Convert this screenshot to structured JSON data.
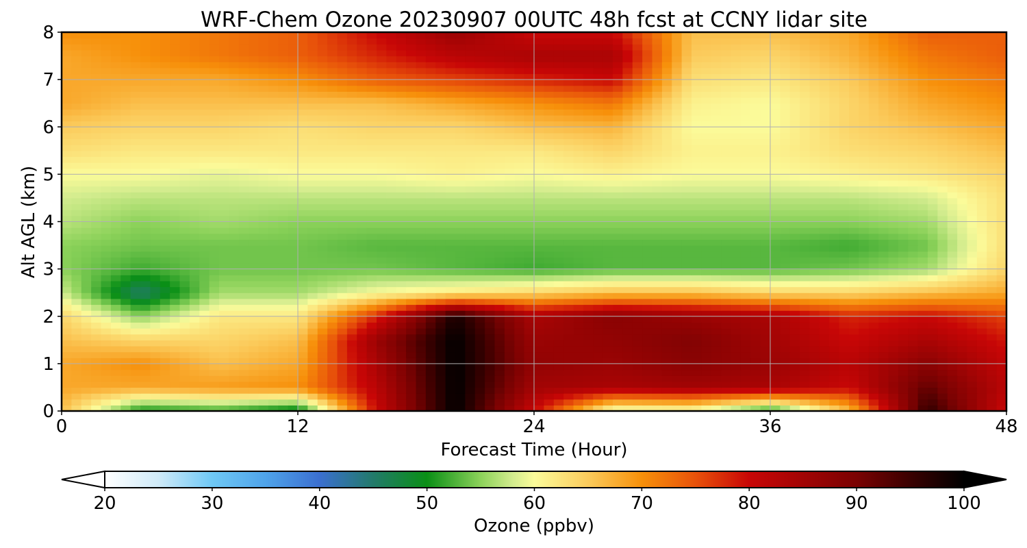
{
  "chart_data": {
    "type": "heatmap",
    "title": "WRF-Chem Ozone  20230907 00UTC 48h fcst at CCNY lidar site",
    "xlabel": "Forecast Time (Hour)",
    "ylabel": "Alt AGL (km)",
    "xlim": [
      0,
      48
    ],
    "ylim": [
      0,
      8
    ],
    "xticks": [
      0,
      12,
      24,
      36,
      48
    ],
    "yticks": [
      0,
      1,
      2,
      3,
      4,
      5,
      6,
      7,
      8
    ],
    "grid": true,
    "colorbar": {
      "label": "Ozone  (ppbv)",
      "range": [
        20,
        100
      ],
      "ticks": [
        20,
        30,
        40,
        50,
        60,
        70,
        80,
        90,
        100
      ],
      "extend": "both",
      "stops": [
        {
          "value": 20,
          "color": "#ffffff"
        },
        {
          "value": 25,
          "color": "#cfeaf8"
        },
        {
          "value": 30,
          "color": "#6fc8f5"
        },
        {
          "value": 35,
          "color": "#4fa3ea"
        },
        {
          "value": 40,
          "color": "#3b6fd0"
        },
        {
          "value": 45,
          "color": "#227a6a"
        },
        {
          "value": 50,
          "color": "#0a8f16"
        },
        {
          "value": 55,
          "color": "#8cd25a"
        },
        {
          "value": 58,
          "color": "#d3ec8e"
        },
        {
          "value": 60,
          "color": "#fbfb9a"
        },
        {
          "value": 65,
          "color": "#fbcb5c"
        },
        {
          "value": 70,
          "color": "#f7900a"
        },
        {
          "value": 75,
          "color": "#e8520a"
        },
        {
          "value": 80,
          "color": "#c80606"
        },
        {
          "value": 85,
          "color": "#a20404"
        },
        {
          "value": 90,
          "color": "#7a0202"
        },
        {
          "value": 95,
          "color": "#3a0000"
        },
        {
          "value": 100,
          "color": "#000000"
        }
      ]
    },
    "hours": [
      0,
      4,
      8,
      12,
      16,
      20,
      24,
      28,
      32,
      36,
      40,
      44,
      48
    ],
    "altitudes_km": [
      0,
      0.5,
      1,
      1.5,
      2,
      2.5,
      3,
      3.5,
      4,
      4.5,
      5,
      5.5,
      6,
      6.5,
      7,
      7.5,
      8
    ],
    "ozone_ppbv": [
      [
        66,
        50,
        52,
        48,
        80,
        100,
        80,
        58,
        59,
        50,
        66,
        96,
        80
      ],
      [
        68,
        68,
        69,
        70,
        82,
        100,
        85,
        84,
        85,
        84,
        80,
        92,
        82
      ],
      [
        68,
        70,
        66,
        68,
        84,
        100,
        87,
        86,
        88,
        86,
        82,
        88,
        81
      ],
      [
        66,
        64,
        64,
        66,
        86,
        100,
        86,
        87,
        89,
        85,
        80,
        84,
        79
      ],
      [
        64,
        55,
        62,
        62,
        78,
        98,
        84,
        88,
        86,
        84,
        78,
        80,
        76
      ],
      [
        58,
        45,
        56,
        56,
        60,
        62,
        64,
        66,
        66,
        64,
        64,
        66,
        68
      ],
      [
        55,
        52,
        54,
        54,
        54,
        53,
        52,
        53,
        53,
        53,
        54,
        56,
        64
      ],
      [
        55,
        54,
        54,
        54,
        53,
        53,
        53,
        53,
        53,
        53,
        52,
        54,
        63
      ],
      [
        57,
        55,
        56,
        55,
        55,
        55,
        55,
        55,
        55,
        55,
        55,
        56,
        63
      ],
      [
        58,
        57,
        57,
        57,
        57,
        57,
        57,
        57,
        57,
        57,
        57,
        58,
        63
      ],
      [
        60,
        60,
        59,
        60,
        60,
        61,
        60,
        61,
        60,
        60,
        61,
        62,
        64
      ],
      [
        63,
        62,
        62,
        62,
        62,
        62,
        62,
        64,
        61,
        61,
        63,
        64,
        66
      ],
      [
        65,
        64,
        64,
        63,
        64,
        64,
        66,
        67,
        60,
        60,
        64,
        66,
        68
      ],
      [
        68,
        66,
        66,
        66,
        66,
        68,
        70,
        72,
        61,
        60,
        64,
        68,
        70
      ],
      [
        68,
        68,
        68,
        70,
        74,
        76,
        78,
        80,
        63,
        62,
        65,
        70,
        72
      ],
      [
        68,
        70,
        72,
        74,
        78,
        82,
        84,
        84,
        65,
        64,
        67,
        72,
        74
      ],
      [
        70,
        70,
        72,
        74,
        80,
        86,
        80,
        80,
        66,
        66,
        68,
        74,
        74
      ]
    ]
  }
}
